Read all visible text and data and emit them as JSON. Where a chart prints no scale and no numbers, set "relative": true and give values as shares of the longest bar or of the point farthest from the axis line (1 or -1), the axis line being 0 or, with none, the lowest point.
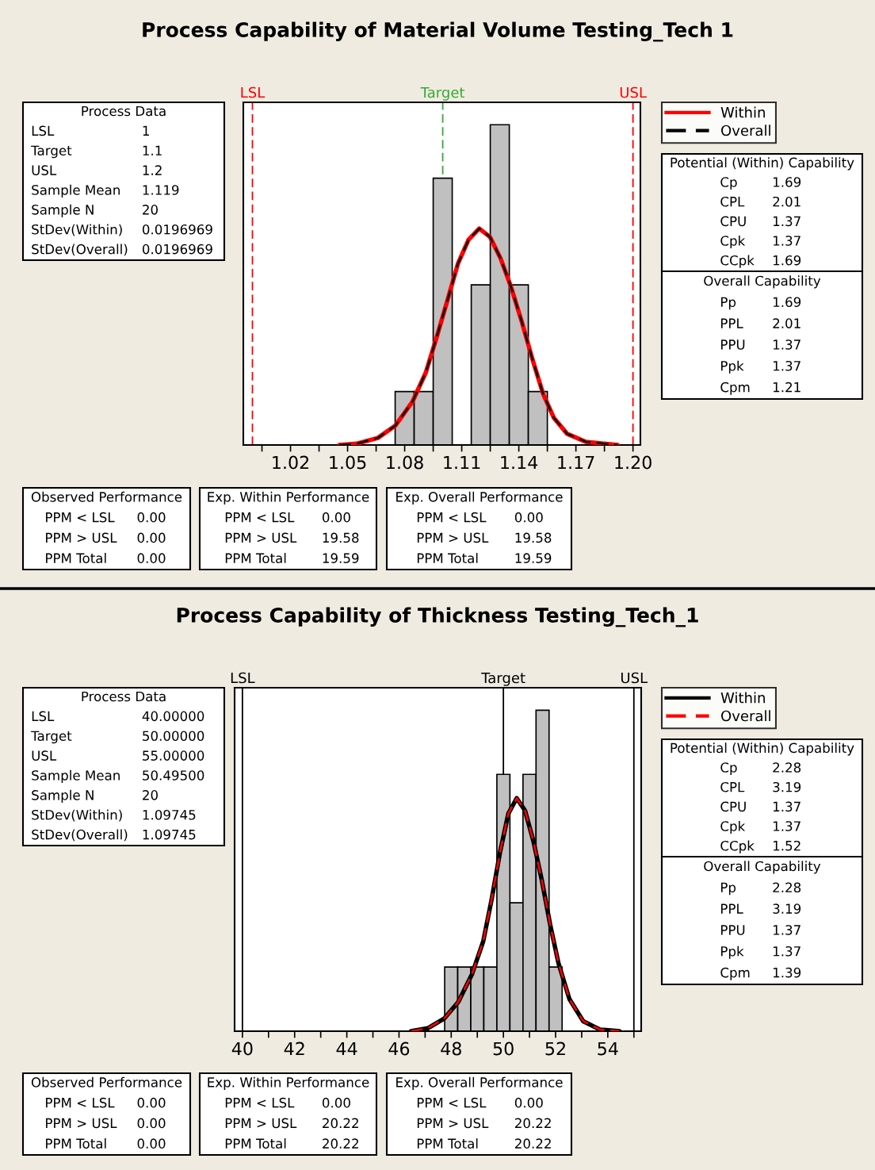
{
  "chart_data": [
    {
      "type": "histogram",
      "title": "Process Capability of Material Volume Testing_Tech 1",
      "relative": true,
      "color": "#c0c0c0",
      "bins": [
        1.075,
        1.085,
        1.095,
        1.105,
        1.115,
        1.125,
        1.135,
        1.145,
        1.155
      ],
      "values": [
        0.167,
        0.167,
        0.833,
        0,
        0.5,
        1,
        0.5,
        0.167
      ],
      "series": [
        {
          "name": "Within",
          "type": "line",
          "color": "#ff0000",
          "line_style": "solid",
          "x": [
            1.0456,
            1.0547,
            1.0659,
            1.075,
            1.0841,
            1.0911,
            1.0967,
            1.1024,
            1.108,
            1.1136,
            1.1192,
            1.1248,
            1.1304,
            1.136,
            1.1416,
            1.1472,
            1.1528,
            1.1584,
            1.1654,
            1.1752,
            1.192
          ],
          "values": [
            0,
            0.004,
            0.022,
            0.06,
            0.135,
            0.226,
            0.334,
            0.45,
            0.566,
            0.641,
            0.676,
            0.65,
            0.583,
            0.492,
            0.384,
            0.267,
            0.159,
            0.085,
            0.035,
            0.01,
            0
          ]
        },
        {
          "name": "Overall",
          "type": "line",
          "color": "#000000",
          "line_style": "dashed",
          "x": [
            1.0456,
            1.0547,
            1.0659,
            1.075,
            1.0841,
            1.0911,
            1.0967,
            1.1024,
            1.108,
            1.1136,
            1.1192,
            1.1248,
            1.1304,
            1.136,
            1.1416,
            1.1472,
            1.1528,
            1.1584,
            1.1654,
            1.1752,
            1.192
          ],
          "values": [
            0,
            0.004,
            0.022,
            0.06,
            0.135,
            0.226,
            0.334,
            0.45,
            0.566,
            0.641,
            0.676,
            0.65,
            0.583,
            0.492,
            0.384,
            0.267,
            0.159,
            0.085,
            0.035,
            0.01,
            0
          ]
        }
      ],
      "ref_lines": [
        {
          "axis": "x",
          "value": 1.0,
          "label": "LSL",
          "color": "#ff0000",
          "line_style": "dashed"
        },
        {
          "axis": "x",
          "value": 1.1,
          "label": "Target",
          "color": "#33aa33",
          "line_style": "dashed"
        },
        {
          "axis": "x",
          "value": 1.2,
          "label": "USL",
          "color": "#ff0000",
          "line_style": "dashed"
        }
      ],
      "xlim": [
        0.9952,
        1.2039
      ],
      "xticks": [
        {
          "value": 1.005,
          "label": null
        },
        1.02,
        {
          "value": 1.035,
          "label": null
        },
        1.05,
        {
          "value": 1.065,
          "label": null
        },
        1.08,
        {
          "value": 1.095,
          "label": null
        },
        1.11,
        {
          "value": 1.125,
          "label": null
        },
        1.14,
        {
          "value": 1.155,
          "label": null
        },
        1.17,
        {
          "value": 1.185,
          "label": null
        },
        {
          "value": 1.2,
          "label": "1.20"
        }
      ],
      "legend": "right",
      "grid": false,
      "annotations": [
        "Process Data\nLSL\t1\nTarget\t1.1\nUSL\t1.2\nSample Mean\t1.119\nSample N\t20\nStDev(Within)\t0.0196969\nStDev(Overall)\t0.0196969",
        "Potential (Within) Capability\nCp\t1.69\nCPL\t2.01\nCPU\t1.37\nCpk\t1.37\nCCpk\t1.69",
        "Overall Capability\nPp\t1.69\nPPL\t2.01\nPPU\t1.37\nPpk\t1.37\nCpm\t1.21",
        "Observed Performance\nPPM < LSL\t0.00\nPPM > USL\t0.00\nPPM Total\t0.00",
        "Exp. Within Performance\nPPM < LSL\t0.00\nPPM > USL\t19.58\nPPM Total\t19.59",
        "Exp. Overall Performance\nPPM < LSL\t0.00\nPPM > USL\t19.58\nPPM Total\t19.59"
      ]
    },
    {
      "type": "histogram",
      "title": "Process Capability of Thickness Testing_Tech_1",
      "relative": true,
      "color": "#c0c0c0",
      "bins": [
        47.75,
        48.25,
        48.75,
        49.25,
        49.75,
        50.25,
        50.75,
        51.25,
        51.75,
        52.25
      ],
      "values": [
        0.2,
        0.2,
        0.2,
        0.2,
        0.8,
        0.4,
        0.8,
        1,
        0.2
      ],
      "series": [
        {
          "name": "Within",
          "type": "line",
          "color": "#000000",
          "line_style": "solid",
          "x": [
            46.46,
            47.1,
            47.74,
            48.27,
            48.8,
            49.23,
            49.55,
            49.87,
            50.19,
            50.51,
            50.83,
            51.15,
            51.47,
            51.79,
            52.11,
            52.53,
            53.06,
            53.7,
            54.45
          ],
          "values": [
            0,
            0.009,
            0.04,
            0.091,
            0.178,
            0.281,
            0.411,
            0.557,
            0.678,
            0.726,
            0.687,
            0.592,
            0.471,
            0.333,
            0.212,
            0.1,
            0.031,
            0.005,
            0
          ]
        },
        {
          "name": "Overall",
          "type": "line",
          "color": "#ff0000",
          "line_style": "dashed",
          "x": [
            46.46,
            47.1,
            47.74,
            48.27,
            48.8,
            49.23,
            49.55,
            49.87,
            50.19,
            50.51,
            50.83,
            51.15,
            51.47,
            51.79,
            52.11,
            52.53,
            53.06,
            53.7,
            54.45
          ],
          "values": [
            0,
            0.009,
            0.04,
            0.091,
            0.178,
            0.281,
            0.411,
            0.557,
            0.678,
            0.726,
            0.687,
            0.592,
            0.471,
            0.333,
            0.212,
            0.1,
            0.031,
            0.005,
            0
          ]
        }
      ],
      "ref_lines": [
        {
          "axis": "x",
          "value": 40,
          "label": "LSL",
          "color": "#000000",
          "line_style": "solid"
        },
        {
          "axis": "x",
          "value": 50,
          "label": "Target",
          "color": "#000000",
          "line_style": "solid"
        },
        {
          "axis": "x",
          "value": 55,
          "label": "USL",
          "color": "#000000",
          "line_style": "solid"
        }
      ],
      "xlim": [
        39.7,
        55.28
      ],
      "xticks": [
        40,
        {
          "value": 41,
          "label": null
        },
        42,
        {
          "value": 43,
          "label": null
        },
        44,
        {
          "value": 45,
          "label": null
        },
        46,
        {
          "value": 47,
          "label": null
        },
        48,
        {
          "value": 49,
          "label": null
        },
        50,
        {
          "value": 51,
          "label": null
        },
        52,
        {
          "value": 53,
          "label": null
        },
        54,
        {
          "value": 55,
          "label": null
        }
      ],
      "legend": "right",
      "grid": false,
      "annotations": [
        "Process Data\nLSL\t40.00000\nTarget\t50.00000\nUSL\t55.00000\nSample Mean\t50.49500\nSample N\t20\nStDev(Within)\t1.09745\nStDev(Overall)\t1.09745",
        "Potential (Within) Capability\nCp\t2.28\nCPL\t3.19\nCPU\t1.37\nCpk\t1.37\nCCpk\t1.52",
        "Overall Capability\nPp\t2.28\nPPL\t3.19\nPPU\t1.37\nPpk\t1.37\nCpm\t1.39",
        "Observed Performance\nPPM < LSL\t0.00\nPPM > USL\t0.00\nPPM Total\t0.00",
        "Exp. Within Performance\nPPM < LSL\t0.00\nPPM > USL\t20.22\nPPM Total\t20.22",
        "Exp. Overall Performance\nPPM < LSL\t0.00\nPPM > USL\t20.22\nPPM Total\t20.22"
      ]
    }
  ]
}
